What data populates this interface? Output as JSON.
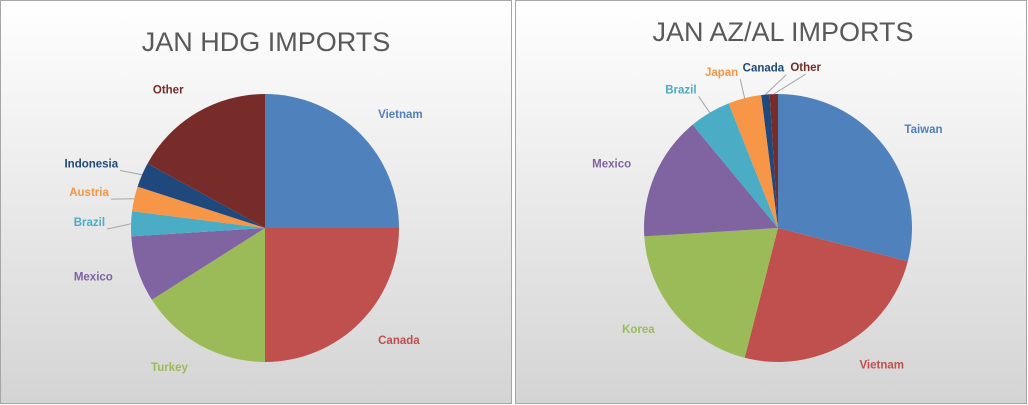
{
  "chart_data": [
    {
      "type": "pie",
      "title": "JAN HDG IMPORTS",
      "categories": [
        "Vietnam",
        "Canada",
        "Turkey",
        "Mexico",
        "Brazil",
        "Austria",
        "Indonesia",
        "Other"
      ],
      "values": [
        25,
        25,
        16,
        8,
        3,
        3,
        3,
        17
      ],
      "colors": [
        "#4f81bd",
        "#c0504d",
        "#9bbb59",
        "#8064a2",
        "#4bacc6",
        "#f79646",
        "#1f497d",
        "#772c2a"
      ]
    },
    {
      "type": "pie",
      "title": "JAN AZ/AL IMPORTS",
      "categories": [
        "Taiwan",
        "Vietnam",
        "Korea",
        "Mexico",
        "Brazil",
        "Japan",
        "Canada",
        "Other"
      ],
      "values": [
        29,
        25,
        20,
        15,
        5,
        4,
        1,
        1
      ],
      "colors": [
        "#4f81bd",
        "#c0504d",
        "#9bbb59",
        "#8064a2",
        "#4bacc6",
        "#f79646",
        "#1f497d",
        "#772c2a"
      ]
    }
  ]
}
